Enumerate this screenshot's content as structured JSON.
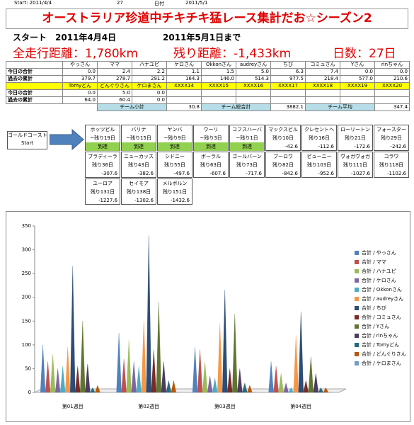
{
  "header": {
    "start": "Start: 2011/4/4",
    "days": "27",
    "date_label": "日付",
    "date": "2011/5/1"
  },
  "title": "オーストラリア珍道中チキチキ猛レース集計だお☆シーズン2",
  "summary": {
    "start": "スタート　2011年4月4日",
    "end": "2011年5月1日まで",
    "total": "全走行距離：1,780km",
    "remaining": "残り距離：-1,433km",
    "days": "日数：27日"
  },
  "table1": {
    "names": [
      "やっさん",
      "ママ",
      "ハナユピ",
      "ケロさん",
      "Okkonさん",
      "audreyさん",
      "ちび",
      "コミュさん",
      "Yさん",
      "rinちゃん"
    ],
    "rows": [
      {
        "label": "今日の合計",
        "values": [
          "0.0",
          "2.4",
          "2.2",
          "1.1",
          "1.5",
          "5.0",
          "6.3",
          "7.4",
          "0.0",
          "0.0"
        ]
      },
      {
        "label": "過去の累計",
        "values": [
          "379.7",
          "278.7",
          "291.2",
          "164.3",
          "146.0",
          "514.3",
          "977.5",
          "218.4",
          "577.0",
          "210.6"
        ]
      }
    ]
  },
  "table2": {
    "names": [
      "Tomyどん",
      "どんぐりさん",
      "ケロまさん",
      "XXXX14",
      "XXXX15",
      "XXXX16",
      "XXXX17",
      "XXXX18",
      "XXXX19",
      "XXXX20"
    ],
    "rows": [
      {
        "label": "今日の合計",
        "values": [
          "0.0",
          "5.0",
          "0.0"
        ]
      },
      {
        "label": "過去の累計",
        "values": [
          "64.0",
          "60.4",
          "0.0"
        ]
      }
    ]
  },
  "team": [
    {
      "label": "チーム小計",
      "value": "30.8"
    },
    {
      "label": "チーム総合計",
      "value": "3882.1"
    },
    {
      "label": "チーム平均",
      "value": "347.4"
    }
  ],
  "route": {
    "start_name": "ゴールドコースト",
    "start_label": "Start",
    "stops": [
      {
        "name": "ホッツビル",
        "days": "~残り19日",
        "status": "到達"
      },
      {
        "name": "バリナ",
        "days": "~残り15日",
        "status": "到達"
      },
      {
        "name": "ヤンバ",
        "days": "~残り9日",
        "status": "到達"
      },
      {
        "name": "ウーリ",
        "days": "~残り3日",
        "status": "到達"
      },
      {
        "name": "コフスハーバー",
        "days": "~残り1日",
        "status": "到達"
      },
      {
        "name": "マックスビル",
        "days": "残り10日",
        "status": "-42.6"
      },
      {
        "name": "クレセントヘッド",
        "days": "残り16日",
        "status": "-112.6"
      },
      {
        "name": "ローリートン",
        "days": "残り21日",
        "status": "-172.6"
      },
      {
        "name": "フォースター",
        "days": "残り29日",
        "status": "-242.6"
      },
      {
        "name": "ブラディーラ",
        "days": "残り36日",
        "status": "-307.6"
      },
      {
        "name": "ニューカッスル",
        "days": "残り43日",
        "status": "-382.6"
      },
      {
        "name": "シドニー",
        "days": "残り55日",
        "status": "-497.6"
      },
      {
        "name": "ボーラル",
        "days": "残り63日",
        "status": "-607.6"
      },
      {
        "name": "ゴールバーン",
        "days": "残り73日",
        "status": "-717.6"
      },
      {
        "name": "ブーロワ",
        "days": "残り82日",
        "status": "-842.6"
      },
      {
        "name": "ピューニー",
        "days": "残り103日",
        "status": "-952.6"
      },
      {
        "name": "ヴォガヴォガ",
        "days": "残り111日",
        "status": "-1027.6"
      },
      {
        "name": "コラワ",
        "days": "残り118日",
        "status": "-1102.6"
      },
      {
        "name": "ユーロア",
        "days": "残り131日",
        "status": "-1227.6"
      },
      {
        "name": "セイモア",
        "days": "残り138日",
        "status": "-1302.6"
      },
      {
        "name": "メルボルン",
        "days": "残り151日",
        "status": "-1432.6"
      }
    ]
  },
  "chart_data": {
    "type": "bar",
    "categories": [
      "第01週目",
      "第02週目",
      "第03週目",
      "第04週目"
    ],
    "ylim": [
      0,
      350
    ],
    "yticks": [
      0,
      50,
      100,
      150,
      200,
      250,
      300,
      350
    ],
    "grid": false,
    "legend": "right",
    "series": [
      {
        "name": "合計 / やっさん",
        "color": "#4F81BD",
        "values": [
          100,
          125,
          95,
          65
        ]
      },
      {
        "name": "合計 / ママ",
        "color": "#C0504D",
        "values": [
          65,
          70,
          90,
          55
        ]
      },
      {
        "name": "合計 / ハナユピ",
        "color": "#9BBB59",
        "values": [
          80,
          110,
          65,
          40
        ]
      },
      {
        "name": "合計 / ケロさん",
        "color": "#8064A2",
        "values": [
          50,
          65,
          35,
          20
        ]
      },
      {
        "name": "合計 / Okkonさん",
        "color": "#4BACC6",
        "values": [
          55,
          55,
          30,
          10
        ]
      },
      {
        "name": "合計 / audreyさん",
        "color": "#F79646",
        "values": [
          95,
          150,
          145,
          120
        ]
      },
      {
        "name": "合計 / ちび",
        "color": "#2C4D75",
        "values": [
          265,
          330,
          215,
          170
        ]
      },
      {
        "name": "合計 / コミュさん",
        "color": "#772C2A",
        "values": [
          55,
          90,
          50,
          25
        ]
      },
      {
        "name": "合計 / Yさん",
        "color": "#5F7530",
        "values": [
          150,
          190,
          165,
          75
        ]
      },
      {
        "name": "合計 / rinちゃん",
        "color": "#4D3B62",
        "values": [
          60,
          65,
          50,
          40
        ]
      },
      {
        "name": "合計 / Tomyどん",
        "color": "#276A7C",
        "values": [
          10,
          25,
          20,
          10
        ]
      },
      {
        "name": "合計 / どんぐりさん",
        "color": "#B65708",
        "values": [
          15,
          25,
          15,
          10
        ]
      },
      {
        "name": "合計 / ケロまさん",
        "color": "#729ACA",
        "values": [
          0,
          0,
          0,
          0
        ]
      }
    ]
  }
}
